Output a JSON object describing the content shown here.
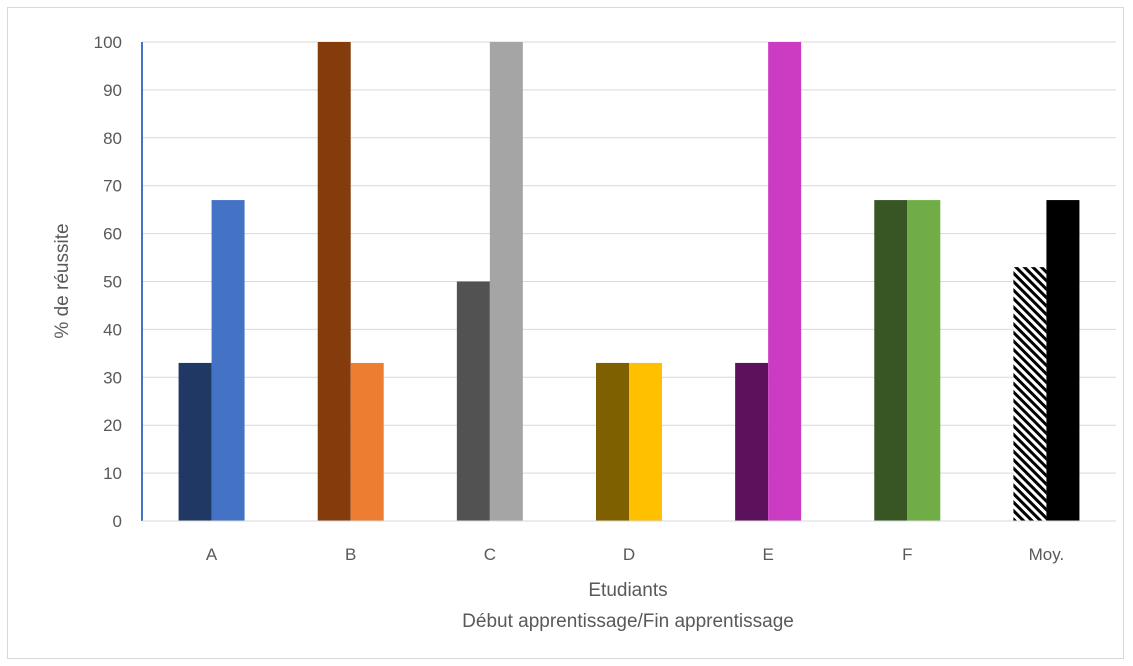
{
  "chart_data": {
    "type": "bar",
    "categories": [
      "A",
      "B",
      "C",
      "D",
      "E",
      "F",
      "Moy."
    ],
    "series": [
      {
        "values": [
          33,
          100,
          50,
          33,
          33,
          67,
          53
        ],
        "colors": [
          "#203864",
          "#843c0c",
          "#525252",
          "#7f6000",
          "#5b115b",
          "#375623",
          "hatched-black"
        ]
      },
      {
        "values": [
          67,
          33,
          100,
          33,
          100,
          67,
          67
        ],
        "colors": [
          "#4472c4",
          "#ed7d31",
          "#a5a5a5",
          "#ffc000",
          "#cc3cc3",
          "#70ad47",
          "#000000"
        ]
      }
    ],
    "ylim": [
      0,
      100
    ],
    "yticks": [
      "0",
      "10",
      "20",
      "30",
      "40",
      "50",
      "60",
      "70",
      "80",
      "90",
      "100"
    ],
    "ylabel": "% de réussite",
    "xlabel": "Etudiants",
    "xlabel2": "Début apprentissage/Fin apprentissage",
    "grid": true
  },
  "colors": {
    "gridline": "#d9d9d9",
    "axis": "#4472c4",
    "text": "#595959"
  }
}
